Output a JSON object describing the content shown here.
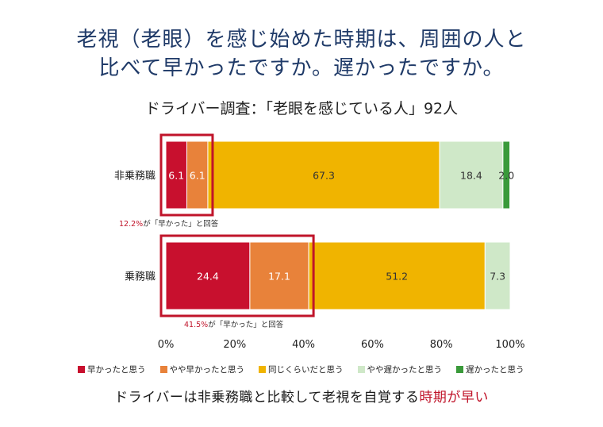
{
  "title_line1": "老視（老眼）を感じ始めた時期は、周囲の人と",
  "title_line2": "比べて早かったですか。遅かったですか。",
  "subtitle": "ドライバー調査：「老眼を感じている人」92人",
  "footer_main": "ドライバーは非乗務職と比較して老視を自覚する",
  "footer_highlight": "時期が早い",
  "chart_data": {
    "type": "bar",
    "orientation": "horizontal",
    "stacked": true,
    "categories": [
      "非乗務職",
      "乗務職"
    ],
    "series": [
      {
        "name": "早かったと思う",
        "values": [
          6.1,
          24.4
        ],
        "color": "#c8102e"
      },
      {
        "name": "やや早かったと思う",
        "values": [
          6.1,
          17.1
        ],
        "color": "#e8823a"
      },
      {
        "name": "同じくらいだと思う",
        "values": [
          67.3,
          51.2
        ],
        "color": "#f0b400"
      },
      {
        "name": "やや遅かったと思う",
        "values": [
          18.4,
          7.3
        ],
        "color": "#cfe8c8"
      },
      {
        "name": "遅かったと思う",
        "values": [
          2.0,
          0
        ],
        "color": "#3a9a3a"
      }
    ],
    "xlim": [
      0,
      100
    ],
    "xticks": [
      "0%",
      "20%",
      "40%",
      "60%",
      "80%",
      "100%"
    ],
    "legend_position": "bottom",
    "annotations": [
      {
        "category": "非乗務職",
        "text": "12.2%が「早かった」と回答",
        "value": 12.2
      },
      {
        "category": "乗務職",
        "text": "41.5%が「早かった」と回答",
        "value": 41.5
      }
    ]
  }
}
